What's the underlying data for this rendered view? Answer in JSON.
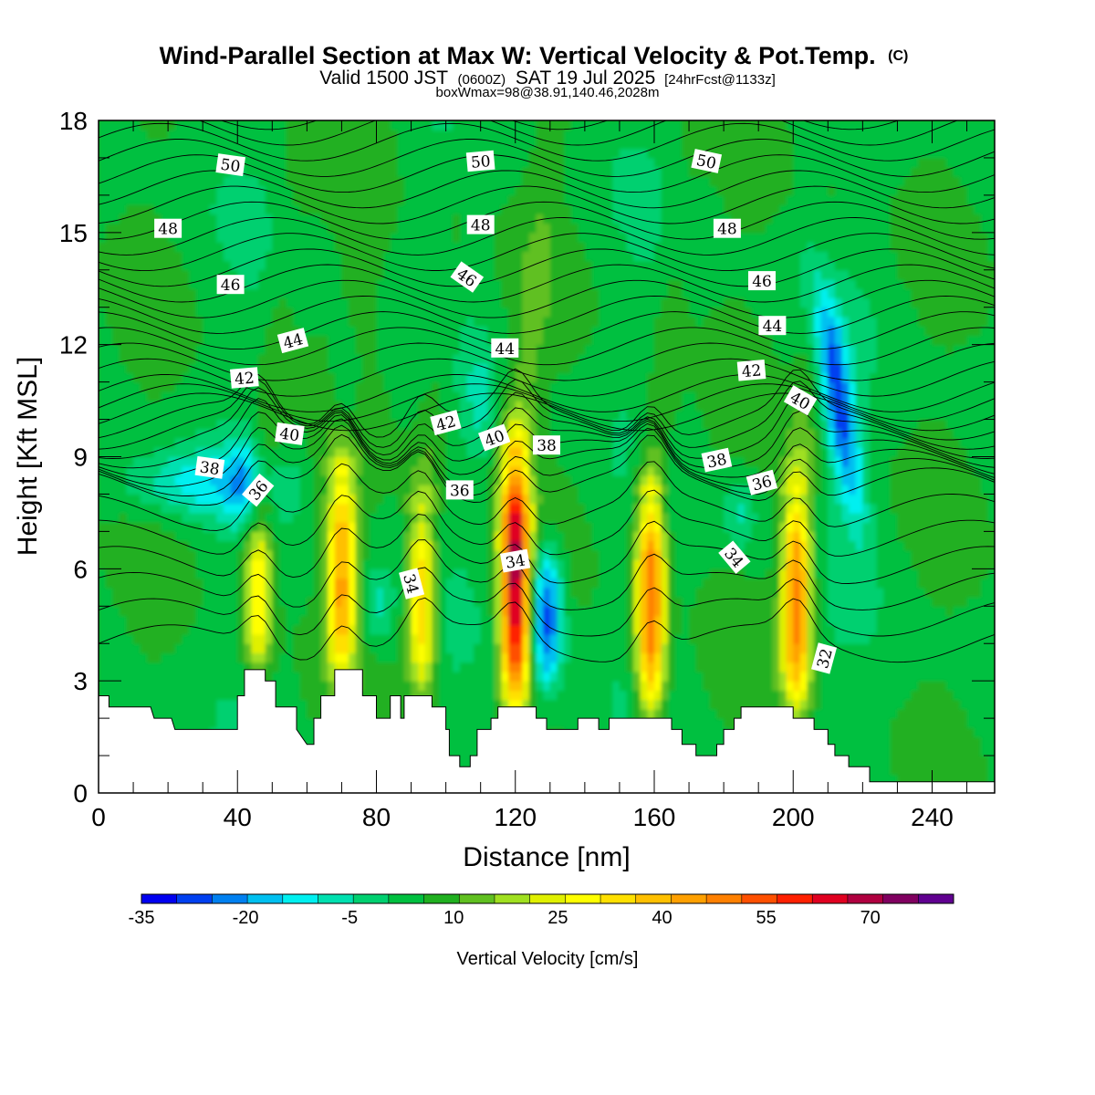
{
  "chart_data": {
    "type": "heatmap",
    "title": "Wind-Parallel Section at Max W: Vertical Velocity & Pot.Temp.",
    "title_mark": "(C)",
    "subtitle_prefix": "Valid 1500 JST",
    "subtitle_utc": "(0600Z)",
    "subtitle_date": "SAT 19 Jul 2025",
    "subtitle_fcst": "[24hrFcst@1133z]",
    "subtitle2": "boxWmax=98@38.91,140.46,2028m",
    "xlabel": "Distance [nm]",
    "ylabel": "Height [Kft MSL]",
    "xlim": [
      0,
      258
    ],
    "ylim": [
      0,
      18
    ],
    "x_ticks": [
      "0",
      "40",
      "80",
      "120",
      "160",
      "200",
      "240"
    ],
    "x_tick_values": [
      0,
      40,
      80,
      120,
      160,
      200,
      240
    ],
    "y_ticks": [
      "0",
      "3",
      "6",
      "9",
      "12",
      "15",
      "18"
    ],
    "y_tick_values": [
      0,
      3,
      6,
      9,
      12,
      15,
      18
    ],
    "colorbar": {
      "label": "Vertical Velocity [cm/s]",
      "tick_labels": [
        "-35",
        "-20",
        "-5",
        "10",
        "25",
        "40",
        "55",
        "70"
      ],
      "tick_values": [
        -35,
        -20,
        -5,
        10,
        25,
        40,
        55,
        70
      ],
      "min": -35,
      "max": 82,
      "colors": [
        "#0000f0",
        "#0040f0",
        "#0080f0",
        "#00c0f0",
        "#00f0f0",
        "#00e0b0",
        "#00d070",
        "#00c040",
        "#20b020",
        "#60c020",
        "#a0e020",
        "#e0f000",
        "#ffff00",
        "#ffe000",
        "#ffc000",
        "#ffa000",
        "#ff8000",
        "#ff5000",
        "#ff2000",
        "#e00020",
        "#b00040",
        "#800060",
        "#600090"
      ]
    },
    "updrafts": [
      {
        "x": 46,
        "zbot": 3.3,
        "ztop": 7.5,
        "w": 28
      },
      {
        "x": 70,
        "zbot": 3.3,
        "ztop": 8.5,
        "w": 38
      },
      {
        "x": 93,
        "zbot": 2.8,
        "ztop": 7.5,
        "w": 33
      },
      {
        "x": 120,
        "zbot": 2.4,
        "ztop": 9.0,
        "w": 65
      },
      {
        "x": 159,
        "zbot": 2.2,
        "ztop": 8.0,
        "w": 48
      },
      {
        "x": 201,
        "zbot": 2.4,
        "ztop": 8.0,
        "w": 45
      }
    ],
    "downdrafts": [
      {
        "x": 129,
        "zbot": 3.0,
        "ztop": 6.5,
        "w": -33
      },
      {
        "x": 213,
        "zbot": 7.5,
        "ztop": 13.5,
        "w": -30
      },
      {
        "x": 72,
        "zbot": 9.0,
        "ztop": 12.5,
        "w": -12
      },
      {
        "x": 80,
        "zbot": 4.0,
        "ztop": 6.0,
        "w": -10
      },
      {
        "x": 42,
        "zbot": 7.0,
        "ztop": 9.5,
        "w": -12
      },
      {
        "x": 185,
        "zbot": 6.5,
        "ztop": 8.5,
        "w": -10
      },
      {
        "x": 110,
        "zbot": 9.0,
        "ztop": 12.0,
        "w": -8
      }
    ],
    "theta_levels": [
      32,
      34,
      36,
      38,
      40,
      42,
      44,
      46,
      48,
      50
    ],
    "contour_labels": [
      {
        "text": "50",
        "x": 38,
        "z": 16.8,
        "angle": 8
      },
      {
        "text": "50",
        "x": 110,
        "z": 16.9,
        "angle": -5
      },
      {
        "text": "50",
        "x": 175,
        "z": 16.9,
        "angle": 12
      },
      {
        "text": "48",
        "x": 20,
        "z": 15.1,
        "angle": 0
      },
      {
        "text": "48",
        "x": 110,
        "z": 15.2,
        "angle": 0
      },
      {
        "text": "48",
        "x": 181,
        "z": 15.1,
        "angle": 0
      },
      {
        "text": "46",
        "x": 38,
        "z": 13.6,
        "angle": 0
      },
      {
        "text": "46",
        "x": 106,
        "z": 13.8,
        "angle": 35
      },
      {
        "text": "46",
        "x": 191,
        "z": 13.7,
        "angle": 0
      },
      {
        "text": "44",
        "x": 56,
        "z": 12.1,
        "angle": -15
      },
      {
        "text": "44",
        "x": 117,
        "z": 11.9,
        "angle": 0
      },
      {
        "text": "44",
        "x": 194,
        "z": 12.5,
        "angle": 0
      },
      {
        "text": "42",
        "x": 42,
        "z": 11.1,
        "angle": -5
      },
      {
        "text": "42",
        "x": 100,
        "z": 9.9,
        "angle": -15
      },
      {
        "text": "42",
        "x": 188,
        "z": 11.3,
        "angle": -5
      },
      {
        "text": "40",
        "x": 55,
        "z": 9.6,
        "angle": 8
      },
      {
        "text": "40",
        "x": 114,
        "z": 9.5,
        "angle": -20
      },
      {
        "text": "40",
        "x": 202,
        "z": 10.5,
        "angle": 30
      },
      {
        "text": "38",
        "x": 32,
        "z": 8.7,
        "angle": 8
      },
      {
        "text": "38",
        "x": 129,
        "z": 9.3,
        "angle": 0
      },
      {
        "text": "38",
        "x": 178,
        "z": 8.9,
        "angle": -12
      },
      {
        "text": "36",
        "x": 46,
        "z": 8.1,
        "angle": -50
      },
      {
        "text": "36",
        "x": 104,
        "z": 8.1,
        "angle": 0
      },
      {
        "text": "36",
        "x": 191,
        "z": 8.3,
        "angle": -15
      },
      {
        "text": "34",
        "x": 90,
        "z": 5.6,
        "angle": 75
      },
      {
        "text": "34",
        "x": 120,
        "z": 6.2,
        "angle": -10
      },
      {
        "text": "34",
        "x": 183,
        "z": 6.3,
        "angle": 50
      },
      {
        "text": "32",
        "x": 209,
        "z": 3.6,
        "angle": -75
      }
    ],
    "terrain": [
      [
        0,
        2.6
      ],
      [
        3,
        2.6
      ],
      [
        3,
        2.3
      ],
      [
        9,
        2.3
      ],
      [
        15,
        2.3
      ],
      [
        16,
        2.0
      ],
      [
        21,
        2.0
      ],
      [
        22,
        1.7
      ],
      [
        30,
        1.7
      ],
      [
        35,
        1.7
      ],
      [
        40,
        1.7
      ],
      [
        40,
        2.0
      ],
      [
        40,
        2.6
      ],
      [
        42,
        2.6
      ],
      [
        42,
        3.3
      ],
      [
        48,
        3.3
      ],
      [
        48,
        3.0
      ],
      [
        51,
        3.0
      ],
      [
        51,
        2.3
      ],
      [
        57,
        2.3
      ],
      [
        57,
        1.7
      ],
      [
        60,
        1.3
      ],
      [
        62,
        1.3
      ],
      [
        62,
        2.0
      ],
      [
        64,
        2.0
      ],
      [
        64,
        2.6
      ],
      [
        68,
        2.6
      ],
      [
        68,
        3.3
      ],
      [
        76,
        3.3
      ],
      [
        76,
        2.6
      ],
      [
        80,
        2.6
      ],
      [
        80,
        2.0
      ],
      [
        84,
        2.0
      ],
      [
        84,
        2.6
      ],
      [
        87,
        2.6
      ],
      [
        87,
        2.0
      ],
      [
        88,
        2.0
      ],
      [
        88,
        2.6
      ],
      [
        96,
        2.6
      ],
      [
        96,
        2.3
      ],
      [
        100,
        2.3
      ],
      [
        100,
        1.7
      ],
      [
        101,
        1.7
      ],
      [
        101,
        1.0
      ],
      [
        104,
        1.0
      ],
      [
        104,
        0.7
      ],
      [
        107,
        0.7
      ],
      [
        107,
        1.0
      ],
      [
        109,
        1.0
      ],
      [
        109,
        1.7
      ],
      [
        113,
        1.7
      ],
      [
        113,
        2.0
      ],
      [
        115,
        2.0
      ],
      [
        115,
        2.3
      ],
      [
        126,
        2.3
      ],
      [
        126,
        2.0
      ],
      [
        129,
        2.0
      ],
      [
        129,
        1.7
      ],
      [
        138,
        1.7
      ],
      [
        138,
        2.0
      ],
      [
        144,
        2.0
      ],
      [
        144,
        1.7
      ],
      [
        147,
        1.7
      ],
      [
        147,
        2.0
      ],
      [
        165,
        2.0
      ],
      [
        165,
        1.7
      ],
      [
        168,
        1.7
      ],
      [
        168,
        1.3
      ],
      [
        172,
        1.3
      ],
      [
        172,
        1.0
      ],
      [
        178,
        1.0
      ],
      [
        178,
        1.3
      ],
      [
        180,
        1.3
      ],
      [
        180,
        1.7
      ],
      [
        183,
        1.7
      ],
      [
        183,
        2.0
      ],
      [
        185,
        2.0
      ],
      [
        185,
        2.3
      ],
      [
        200,
        2.3
      ],
      [
        200,
        2.0
      ],
      [
        206,
        2.0
      ],
      [
        206,
        1.7
      ],
      [
        210,
        1.7
      ],
      [
        210,
        1.3
      ],
      [
        212,
        1.3
      ],
      [
        212,
        1.0
      ],
      [
        216,
        1.0
      ],
      [
        216,
        0.7
      ],
      [
        222,
        0.7
      ],
      [
        222,
        0.3
      ],
      [
        236,
        0.3
      ],
      [
        258,
        0.3
      ]
    ]
  }
}
